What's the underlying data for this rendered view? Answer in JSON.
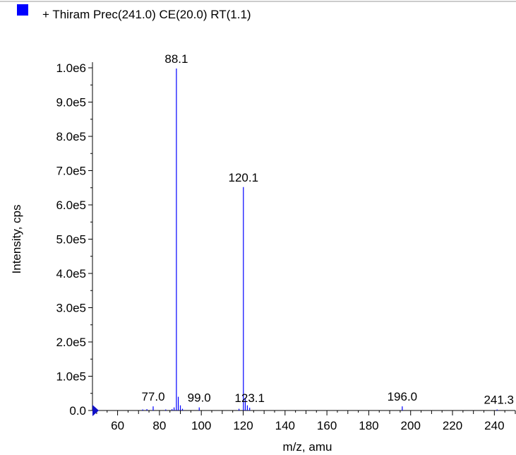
{
  "legend": {
    "label": "+ Thiram Prec(241.0) CE(20.0) RT(1.1)",
    "color": "#0000ff"
  },
  "chart_data": {
    "type": "bar",
    "title": "",
    "xlabel": "m/z, amu",
    "ylabel": "Intensity, cps",
    "xlim": [
      48,
      250
    ],
    "ylim": [
      0,
      1000000
    ],
    "x_ticks": [
      60,
      80,
      100,
      120,
      140,
      160,
      180,
      200,
      220,
      240
    ],
    "x_tick_labels": [
      "60",
      "80",
      "100",
      "120",
      "140",
      "160",
      "180",
      "200",
      "220",
      "240"
    ],
    "y_ticks": [
      0,
      100000,
      200000,
      300000,
      400000,
      500000,
      600000,
      700000,
      800000,
      900000,
      1000000
    ],
    "y_tick_labels": [
      "0.0",
      "1.0e5",
      "2.0e5",
      "3.0e5",
      "4.0e5",
      "5.0e5",
      "6.0e5",
      "7.0e5",
      "8.0e5",
      "9.0e5",
      "1.0e6"
    ],
    "series": [
      {
        "color": "#0000ff",
        "x": [
          72.0,
          74.0,
          77.0,
          83.0,
          86.0,
          87.0,
          88.1,
          89.0,
          90.0,
          91.0,
          99.0,
          118.0,
          120.1,
          121.0,
          122.0,
          123.1,
          196.0,
          241.3
        ],
        "y": [
          3000,
          4000,
          12000,
          3000,
          4000,
          9000,
          998000,
          40000,
          15000,
          5000,
          9000,
          5000,
          652000,
          35000,
          15000,
          8000,
          12000,
          3000
        ]
      }
    ],
    "peak_labels": [
      {
        "x": 88.1,
        "y": 998000,
        "text": "88.1"
      },
      {
        "x": 120.1,
        "y": 652000,
        "text": "120.1"
      },
      {
        "x": 77.0,
        "y": 12000,
        "text": "77.0"
      },
      {
        "x": 99.0,
        "y": 9000,
        "text": "99.0"
      },
      {
        "x": 123.1,
        "y": 8000,
        "text": "123.1"
      },
      {
        "x": 196.0,
        "y": 12000,
        "text": "196.0"
      },
      {
        "x": 241.3,
        "y": 3000,
        "text": "241.3"
      }
    ]
  }
}
